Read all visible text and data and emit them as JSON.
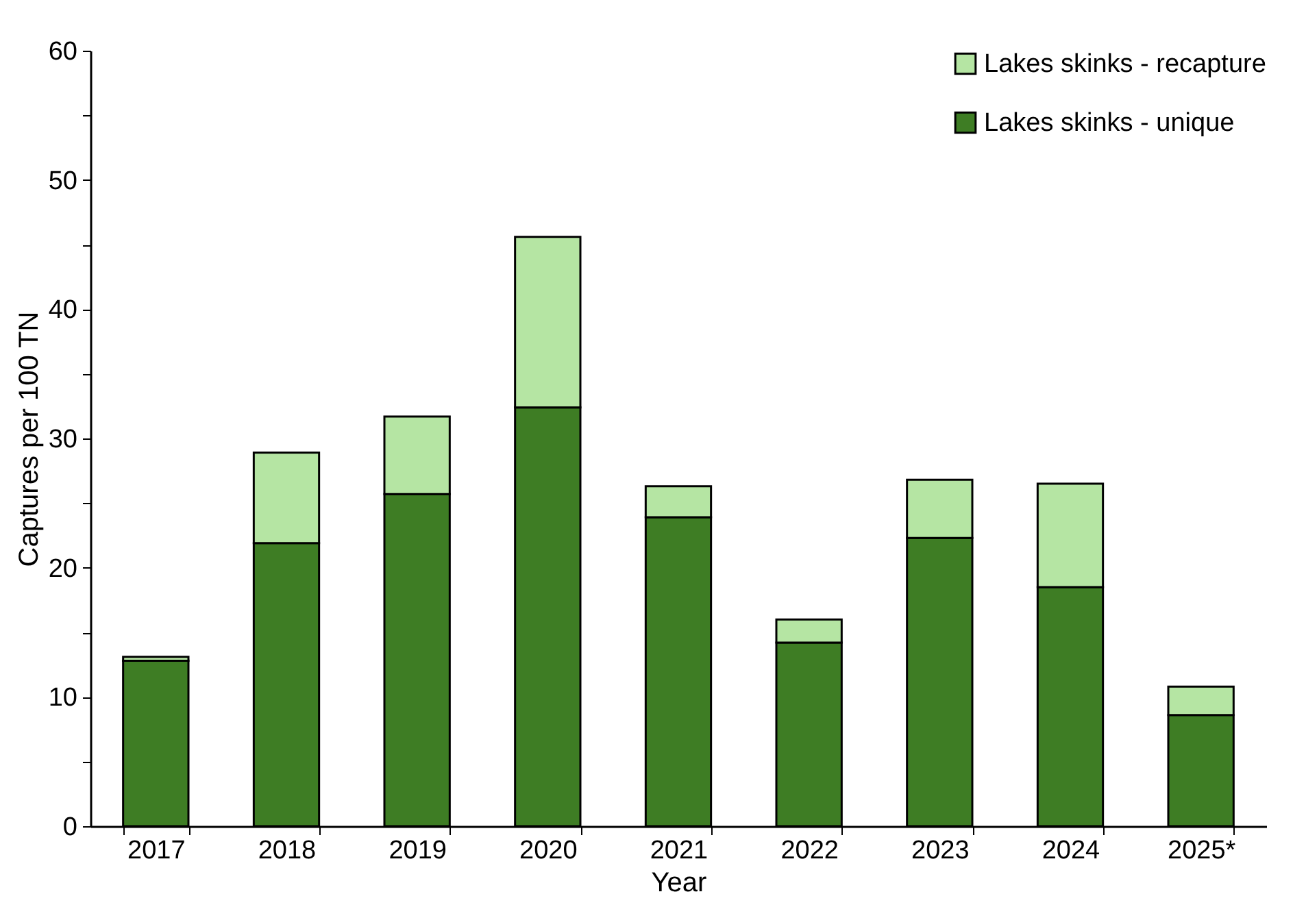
{
  "chart_data": {
    "type": "bar",
    "xlabel": "Year",
    "ylabel": "Captures per 100 TN",
    "categories": [
      "2017",
      "2018",
      "2019",
      "2020",
      "2021",
      "2022",
      "2023",
      "2024",
      "2025*"
    ],
    "stacked": true,
    "legend": "top right",
    "grid": false,
    "series": [
      {
        "name": "Lakes skinks - unique",
        "color": "#3e7d24",
        "values": [
          12.8,
          21.9,
          25.7,
          32.4,
          23.9,
          14.2,
          22.3,
          18.5,
          8.6
        ]
      },
      {
        "name": "Lakes skinks - recapture",
        "color": "#b5e5a3",
        "values": [
          0.3,
          7.0,
          6.0,
          13.2,
          2.4,
          1.8,
          4.5,
          8.0,
          2.2
        ]
      }
    ],
    "ylim": [
      0,
      60
    ],
    "yticks": [
      0,
      {
        "value": 5,
        "label": null
      },
      10,
      {
        "value": 15,
        "label": null
      },
      20,
      {
        "value": 25,
        "label": null
      },
      30,
      {
        "value": 35,
        "label": null
      },
      40,
      {
        "value": 45,
        "label": null
      },
      50,
      {
        "value": 55,
        "label": null
      },
      60
    ]
  }
}
